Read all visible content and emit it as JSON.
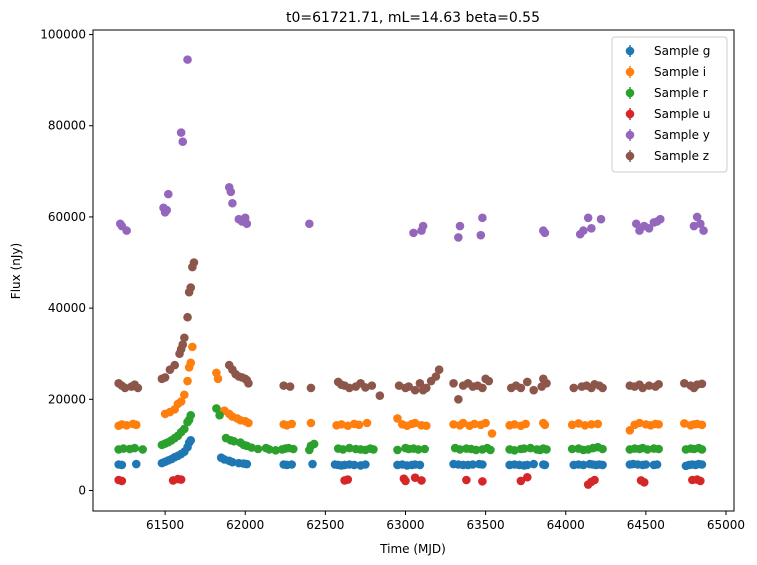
{
  "chart_data": {
    "type": "scatter",
    "title": "t0=61721.71, mL=14.63 beta=0.55",
    "xlabel": "Time (MJD)",
    "ylabel": "Flux (nJy)",
    "xlim": [
      61050,
      65050
    ],
    "ylim": [
      -4500,
      101000
    ],
    "xticks": [
      61500,
      62000,
      62500,
      63000,
      63500,
      64000,
      64500,
      65000
    ],
    "yticks": [
      0,
      20000,
      40000,
      60000,
      80000,
      100000
    ],
    "legend_position": "top-right",
    "series": [
      {
        "name": "Sample g",
        "color": "#1f77b4",
        "x": [
          61210,
          61230,
          61320,
          61480,
          61500,
          61520,
          61540,
          61560,
          61580,
          61600,
          61620,
          61640,
          61650,
          61660,
          61850,
          61870,
          61900,
          61920,
          61960,
          61990,
          62010,
          62240,
          62260,
          62290,
          62420,
          62560,
          62580,
          62600,
          62620,
          62650,
          62680,
          62720,
          62750,
          62950,
          62980,
          63010,
          63040,
          63060,
          63090,
          63300,
          63330,
          63360,
          63390,
          63420,
          63460,
          63480,
          63650,
          63680,
          63710,
          63740,
          63760,
          63800,
          63860,
          63870,
          64050,
          64080,
          64110,
          64150,
          64170,
          64190,
          64210,
          64230,
          64400,
          64420,
          64450,
          64480,
          64500,
          64550,
          64570,
          64750,
          64770,
          64790,
          64810,
          64830,
          64850
        ],
        "y": [
          5700,
          5600,
          5800,
          6000,
          6300,
          6600,
          6900,
          7300,
          7600,
          8000,
          8500,
          9500,
          10500,
          11000,
          7200,
          6800,
          6500,
          6200,
          6000,
          5900,
          5800,
          5700,
          5600,
          5700,
          5800,
          5700,
          5600,
          5500,
          5600,
          5700,
          5600,
          5500,
          5700,
          5600,
          5700,
          5500,
          5600,
          5700,
          5600,
          5800,
          5700,
          5600,
          5600,
          5700,
          5800,
          5700,
          5600,
          5700,
          5600,
          5500,
          5600,
          5800,
          5700,
          5600,
          5600,
          5700,
          5600,
          5800,
          5700,
          5600,
          5700,
          5600,
          5700,
          5800,
          5700,
          5600,
          5700,
          5600,
          5700,
          5400,
          5600,
          5700,
          5600,
          5800,
          5700
        ]
      },
      {
        "name": "Sample i",
        "color": "#ff7f0e",
        "x": [
          61210,
          61230,
          61260,
          61300,
          61320,
          61500,
          61530,
          61560,
          61580,
          61600,
          61620,
          61640,
          61650,
          61660,
          61670,
          61820,
          61830,
          61870,
          61900,
          61920,
          61950,
          61970,
          62000,
          62020,
          62240,
          62260,
          62290,
          62410,
          62570,
          62600,
          62640,
          62680,
          62710,
          62760,
          62950,
          62980,
          63010,
          63040,
          63060,
          63100,
          63130,
          63300,
          63340,
          63360,
          63400,
          63430,
          63470,
          63500,
          63540,
          63650,
          63680,
          63720,
          63750,
          63860,
          63870,
          64040,
          64080,
          64120,
          64160,
          64200,
          64400,
          64430,
          64460,
          64500,
          64530,
          64560,
          64580,
          64740,
          64780,
          64800,
          64820,
          64850
        ],
        "y": [
          14200,
          14500,
          14300,
          14600,
          14400,
          16800,
          17200,
          17800,
          19000,
          19500,
          21000,
          24000,
          27000,
          28000,
          31500,
          25800,
          24500,
          17500,
          16800,
          16200,
          15800,
          15400,
          15200,
          14800,
          14500,
          14300,
          14600,
          14800,
          14300,
          14500,
          14200,
          14600,
          14400,
          14800,
          15800,
          14500,
          14200,
          14600,
          14800,
          14300,
          14200,
          14500,
          14300,
          14800,
          14200,
          14600,
          14400,
          14800,
          12500,
          14300,
          14500,
          14200,
          14600,
          14800,
          14400,
          14400,
          14700,
          14300,
          14500,
          14600,
          13200,
          14400,
          14800,
          14500,
          14300,
          14600,
          14500,
          14700,
          14300,
          14500,
          14600,
          14400
        ]
      },
      {
        "name": "Sample r",
        "color": "#2ca02c",
        "x": [
          61210,
          61240,
          61280,
          61310,
          61360,
          61480,
          61500,
          61520,
          61540,
          61560,
          61580,
          61600,
          61620,
          61640,
          61650,
          61660,
          61820,
          61840,
          61880,
          61910,
          61930,
          61970,
          61990,
          62010,
          62040,
          62080,
          62130,
          62150,
          62190,
          62230,
          62250,
          62270,
          62300,
          62400,
          62410,
          62430,
          62580,
          62610,
          62650,
          62690,
          62720,
          62750,
          62780,
          62800,
          62950,
          63000,
          63020,
          63050,
          63080,
          63120,
          63310,
          63340,
          63380,
          63410,
          63440,
          63480,
          63510,
          63530,
          63650,
          63680,
          63720,
          63740,
          63780,
          63820,
          63840,
          63860,
          63880,
          64040,
          64080,
          64110,
          64140,
          64170,
          64200,
          64230,
          64400,
          64430,
          64460,
          64480,
          64510,
          64550,
          64580,
          64750,
          64780,
          64800,
          64830,
          64850
        ],
        "y": [
          9000,
          9200,
          9100,
          9300,
          9000,
          10000,
          10300,
          10600,
          11000,
          11500,
          12000,
          12800,
          13500,
          15000,
          15500,
          16500,
          18000,
          16500,
          11500,
          11000,
          10800,
          10500,
          10000,
          9800,
          9400,
          9100,
          9300,
          9000,
          8800,
          9000,
          9200,
          9300,
          9100,
          8900,
          9800,
          10200,
          9200,
          9000,
          9300,
          9100,
          9000,
          8900,
          9200,
          9000,
          8900,
          9300,
          9100,
          9200,
          9000,
          9100,
          9300,
          9000,
          9200,
          9100,
          8900,
          9000,
          9300,
          8900,
          9000,
          8800,
          9100,
          9200,
          9300,
          9000,
          8900,
          9200,
          9000,
          9100,
          9200,
          8900,
          9000,
          9300,
          9500,
          9100,
          9000,
          9200,
          9100,
          9300,
          9000,
          9200,
          9100,
          9000,
          9200,
          9100,
          9300,
          9000
        ]
      },
      {
        "name": "Sample u",
        "color": "#d62728",
        "x": [
          61210,
          61230,
          61550,
          61580,
          61600,
          62620,
          62640,
          62990,
          63000,
          63060,
          63100,
          63380,
          63480,
          63720,
          63760,
          64140,
          64160,
          64180,
          64470,
          64490,
          64790,
          64820,
          64840
        ],
        "y": [
          2300,
          2100,
          2200,
          2500,
          2400,
          2200,
          2400,
          2600,
          2100,
          2800,
          2200,
          2300,
          2000,
          2100,
          2900,
          1300,
          1900,
          2300,
          2200,
          1800,
          2300,
          2400,
          2100
        ]
      },
      {
        "name": "Sample y",
        "color": "#9467bd",
        "x": [
          61220,
          61230,
          61260,
          61490,
          61500,
          61510,
          61520,
          61600,
          61610,
          61640,
          61900,
          61910,
          61920,
          61960,
          61980,
          62000,
          62010,
          62400,
          63050,
          63100,
          63110,
          63330,
          63340,
          63470,
          63480,
          63860,
          63870,
          64090,
          64110,
          64140,
          64160,
          64220,
          64440,
          64460,
          64490,
          64520,
          64550,
          64570,
          64590,
          64800,
          64820,
          64840,
          64860
        ],
        "y": [
          58500,
          58000,
          57000,
          62000,
          61000,
          61500,
          65000,
          78500,
          76500,
          94500,
          66500,
          65500,
          63000,
          59500,
          59000,
          59800,
          58500,
          58500,
          56500,
          57000,
          58000,
          55500,
          58000,
          56000,
          59800,
          57000,
          56500,
          56200,
          57000,
          59800,
          57500,
          59500,
          58500,
          57000,
          58000,
          57500,
          58800,
          59000,
          59500,
          58000,
          60000,
          58500,
          57000
        ]
      },
      {
        "name": "Sample z",
        "color": "#8c564b",
        "x": [
          61210,
          61230,
          61250,
          61290,
          61310,
          61330,
          61480,
          61500,
          61530,
          61560,
          61590,
          61600,
          61610,
          61620,
          61640,
          61650,
          61660,
          61670,
          61680,
          61900,
          61920,
          61940,
          61960,
          61980,
          62000,
          62010,
          62020,
          62240,
          62280,
          62410,
          62580,
          62600,
          62620,
          62650,
          62690,
          62720,
          62750,
          62790,
          62840,
          62960,
          63000,
          63020,
          63060,
          63090,
          63110,
          63130,
          63160,
          63190,
          63210,
          63300,
          63330,
          63360,
          63390,
          63420,
          63450,
          63480,
          63500,
          63520,
          63660,
          63690,
          63720,
          63760,
          63800,
          63850,
          63860,
          63880,
          64050,
          64100,
          64130,
          64160,
          64180,
          64210,
          64230,
          64400,
          64430,
          64460,
          64480,
          64520,
          64560,
          64580,
          64740,
          64780,
          64800,
          64820,
          64850
        ],
        "y": [
          23500,
          23000,
          22500,
          22800,
          23200,
          22500,
          24500,
          24800,
          26500,
          27500,
          30000,
          31000,
          32000,
          33500,
          38000,
          43500,
          44500,
          49000,
          50000,
          27500,
          26500,
          25500,
          25000,
          24800,
          24500,
          24200,
          23500,
          23000,
          22800,
          22500,
          23800,
          23200,
          23000,
          22500,
          22800,
          23500,
          22600,
          23000,
          20800,
          23000,
          22500,
          22800,
          22000,
          23500,
          22000,
          22500,
          24000,
          25000,
          26500,
          23500,
          20000,
          23000,
          23500,
          22800,
          23000,
          22500,
          24500,
          24000,
          22500,
          23000,
          22500,
          23800,
          22000,
          22800,
          24500,
          23500,
          22500,
          22800,
          23000,
          22500,
          23300,
          23000,
          22500,
          23000,
          22800,
          23200,
          22500,
          23000,
          22800,
          23300,
          23500,
          23000,
          22500,
          23200,
          23400
        ]
      }
    ]
  }
}
